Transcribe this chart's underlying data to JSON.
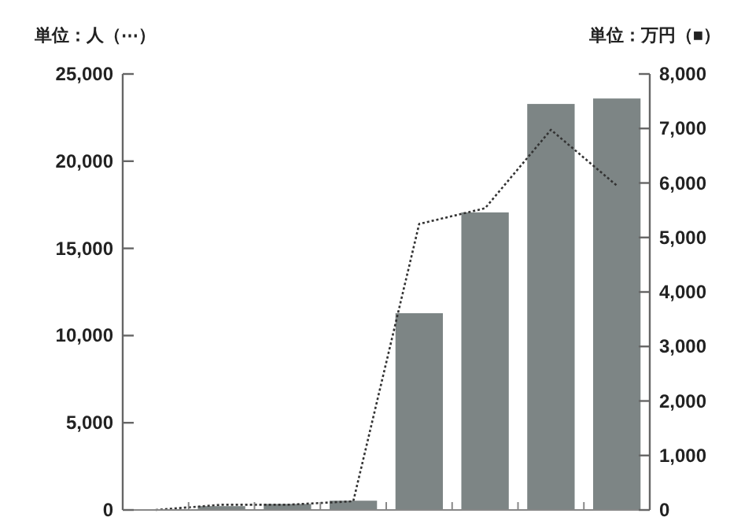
{
  "chart_data": {
    "type": "bar",
    "ylabel": "単位：人（⋯）",
    "y2label": "単位：万円（■）",
    "categories": [
      null,
      null,
      null,
      null,
      null,
      null,
      null,
      null
    ],
    "series": [
      {
        "type": "bar",
        "axis": "y2",
        "color": "#7d8585",
        "values": [
          0,
          70,
          110,
          170,
          3610,
          5460,
          7450,
          7550
        ]
      },
      {
        "type": "line",
        "axis": "y",
        "color": "#333333",
        "line_style": "dotted",
        "marker": "none",
        "values": [
          0,
          300,
          300,
          500,
          16400,
          17300,
          21800,
          18600
        ]
      }
    ],
    "ylim": [
      0,
      25000
    ],
    "yticks": [
      {
        "value": 0,
        "label": "0"
      },
      {
        "value": 5000,
        "label": "5,000"
      },
      {
        "value": 10000,
        "label": "10,000"
      },
      {
        "value": 15000,
        "label": "15,000"
      },
      {
        "value": 20000,
        "label": "20,000"
      },
      {
        "value": 25000,
        "label": "25,000"
      }
    ],
    "y2lim": [
      0,
      8000
    ],
    "y2ticks": [
      {
        "value": 0,
        "label": "0"
      },
      {
        "value": 1000,
        "label": "1,000"
      },
      {
        "value": 2000,
        "label": "2,000"
      },
      {
        "value": 3000,
        "label": "3,000"
      },
      {
        "value": 4000,
        "label": "4,000"
      },
      {
        "value": 5000,
        "label": "5,000"
      },
      {
        "value": 6000,
        "label": "6,000"
      },
      {
        "value": 7000,
        "label": "7,000"
      },
      {
        "value": 8000,
        "label": "8,000"
      }
    ],
    "grid": false
  }
}
